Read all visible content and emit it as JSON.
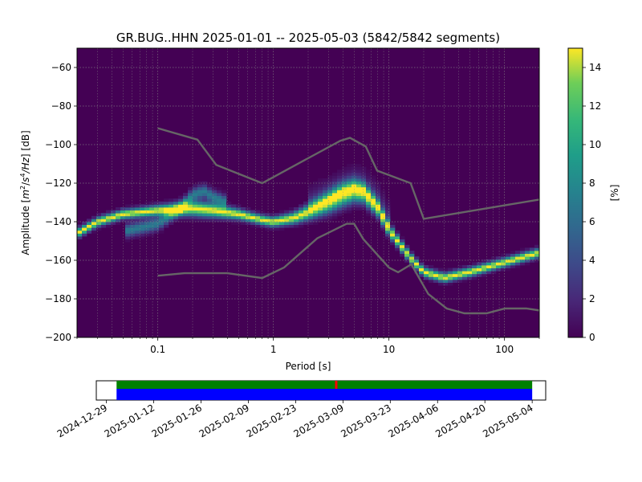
{
  "title": "GR.BUG..HHN   2025-01-01 -- 2025-05-03  (5842/5842 segments)",
  "chart_data": [
    {
      "type": "heatmap",
      "name": "probabilistic-psd",
      "title": "GR.BUG..HHN   2025-01-01 -- 2025-05-03  (5842/5842 segments)",
      "xlabel": "Period [s]",
      "ylabel": "Amplitude [m²/s⁴/Hz] [dB]",
      "ylabel_parts": {
        "prefix": "Amplitude [",
        "m": "m",
        "m_sup": "2",
        "sep": "/",
        "s": "s",
        "s_sup": "4",
        "hz": "/Hz",
        "suffix": "] [dB]"
      },
      "x_scale": "log",
      "xlim": [
        0.02,
        200
      ],
      "ylim": [
        -200,
        -50
      ],
      "x_ticks": [
        0.1,
        1,
        10,
        100
      ],
      "x_tick_labels": [
        "0.1",
        "1",
        "10",
        "100"
      ],
      "y_ticks": [
        -200,
        -180,
        -160,
        -140,
        -120,
        -100,
        -80,
        -60
      ],
      "y_tick_labels": [
        "−200",
        "−180",
        "−160",
        "−140",
        "−120",
        "−100",
        "−80",
        "−60"
      ],
      "grid": true,
      "colormap": "viridis",
      "colorbar": {
        "label": "[%]",
        "range": [
          0,
          15
        ],
        "ticks": [
          0,
          2,
          4,
          6,
          8,
          10,
          12,
          14
        ],
        "tick_labels": [
          "0",
          "2",
          "4",
          "6",
          "8",
          "10",
          "12",
          "14"
        ]
      },
      "mode_curve": {
        "period": [
          0.02,
          0.03,
          0.05,
          0.1,
          0.2,
          0.3,
          0.5,
          0.8,
          1,
          1.5,
          2,
          3,
          4,
          5,
          6,
          8,
          10,
          15,
          20,
          30,
          50,
          100,
          200
        ],
        "amplitude": [
          -146,
          -140,
          -136,
          -134,
          -133,
          -134,
          -136,
          -139,
          -140,
          -138,
          -135,
          -130,
          -126,
          -124,
          -125,
          -133,
          -144,
          -158,
          -166,
          -169,
          -166,
          -161,
          -156
        ]
      },
      "secondary_branch": {
        "period": [
          0.05,
          0.1,
          0.15,
          0.2,
          0.25,
          0.3,
          0.4
        ],
        "amplitude": [
          -145,
          -141,
          -134,
          -126,
          -124,
          -127,
          -130
        ]
      },
      "noise_models": [
        {
          "name": "NHNM",
          "period": [
            0.1,
            0.22,
            0.32,
            0.8,
            3.8,
            4.6,
            6.3,
            7.9,
            15.4,
            20,
            200
          ],
          "amplitude": [
            -91.5,
            -97.4,
            -110.5,
            -120,
            -98,
            -96.5,
            -101,
            -113.5,
            -120,
            -138.5,
            -128.5
          ]
        },
        {
          "name": "NLNM",
          "period": [
            0.1,
            0.17,
            0.4,
            0.8,
            1.24,
            2.4,
            4.3,
            5,
            6,
            10,
            12,
            15.6,
            21.9,
            31.6,
            45,
            70,
            101,
            154,
            200
          ],
          "amplitude": [
            -168,
            -166.7,
            -166.7,
            -169.2,
            -163.7,
            -148.6,
            -141.1,
            -141.1,
            -149,
            -163.8,
            -166.2,
            -162.1,
            -177.5,
            -185,
            -187.5,
            -187.5,
            -185,
            -185,
            -186
          ]
        }
      ]
    },
    {
      "type": "timeline",
      "name": "data-coverage",
      "start": "2025-01-01",
      "end": "2025-05-03",
      "axis_min": "2024-12-26",
      "axis_max": "2025-05-08",
      "tick_labels": [
        "2024-12-29",
        "2025-01-12",
        "2025-01-26",
        "2025-02-09",
        "2025-02-23",
        "2025-03-09",
        "2025-03-23",
        "2025-04-06",
        "2025-04-20",
        "2025-05-04"
      ],
      "colors": {
        "psd_used": "#008000",
        "data": "#0000ff",
        "marker": "#ff0000"
      },
      "marker_date": "2025-03-07"
    }
  ],
  "colors": {
    "noise_model": "#666666",
    "grid": "#888888"
  }
}
